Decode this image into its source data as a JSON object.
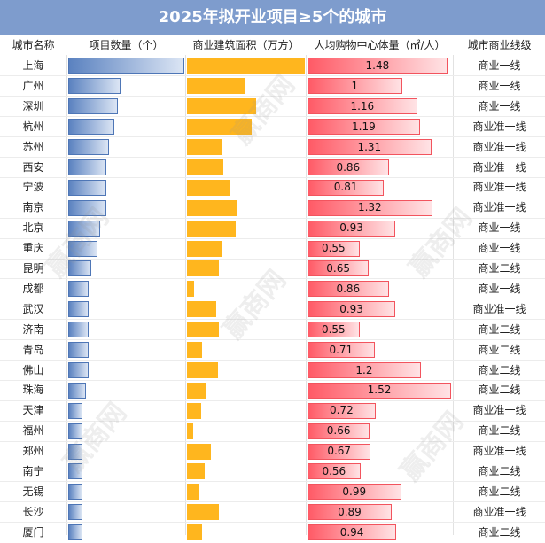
{
  "title": "2025年拟开业项目≥5个的城市",
  "watermark": "赢商网",
  "columns": {
    "city": "城市名称",
    "projects": "项目数量（个）",
    "area": "商业建筑面积（万方）",
    "per_capita": "人均购物中心体量（㎡/人）",
    "tier": "城市商业线级"
  },
  "colors": {
    "header": "#7e9ccd",
    "projects_bar_dark": "#5b82c0",
    "area_bar": "#ffb61e",
    "per_capita_bar": "#ff5a66"
  },
  "chart_data": {
    "type": "table",
    "title": "2025年拟开业项目≥5个的城市",
    "cities": [
      "上海",
      "广州",
      "深圳",
      "杭州",
      "苏州",
      "西安",
      "宁波",
      "南京",
      "北京",
      "重庆",
      "昆明",
      "成都",
      "武汉",
      "济南",
      "青岛",
      "佛山",
      "珠海",
      "天津",
      "福州",
      "郑州",
      "南宁",
      "无锡",
      "长沙",
      "厦门"
    ],
    "projects": [
      20,
      9,
      8.5,
      8,
      7,
      6.5,
      6.5,
      6.5,
      5.5,
      5,
      4,
      3.5,
      3.5,
      3.5,
      3.5,
      3.5,
      3,
      2.5,
      2.5,
      2.5,
      2.5,
      2.5,
      2.5,
      2.5
    ],
    "area": [
      100,
      49,
      59,
      55,
      29,
      31,
      37,
      42,
      41,
      30,
      27,
      6,
      25,
      27,
      13,
      26,
      16,
      12,
      5,
      20,
      15,
      10,
      27,
      13
    ],
    "per_capita": [
      1.48,
      1,
      1.16,
      1.19,
      1.31,
      0.86,
      0.81,
      1.32,
      0.93,
      0.55,
      0.65,
      0.86,
      0.93,
      0.55,
      0.71,
      1.2,
      1.52,
      0.72,
      0.66,
      0.67,
      0.56,
      0.99,
      0.89,
      0.94
    ],
    "per_capita_labels": [
      "1.48",
      "1",
      "1.16",
      "1.19",
      "1.31",
      "0.86",
      "0.81",
      "1.32",
      "0.93",
      "0.55",
      "0.65",
      "0.86",
      "0.93",
      "0.55",
      "0.71",
      "1.2",
      "1.52",
      "0.72",
      "0.66",
      "0.67",
      "0.56",
      "0.99",
      "0.89",
      "0.94"
    ],
    "tiers": [
      "商业一线",
      "商业一线",
      "商业一线",
      "商业准一线",
      "商业准一线",
      "商业准一线",
      "商业准一线",
      "商业准一线",
      "商业一线",
      "商业一线",
      "商业二线",
      "商业一线",
      "商业准一线",
      "商业二线",
      "商业二线",
      "商业二线",
      "商业二线",
      "商业准一线",
      "商业二线",
      "商业准一线",
      "商业二线",
      "商业二线",
      "商业准一线",
      "商业二线"
    ],
    "projects_max": 20,
    "area_max": 100,
    "per_capita_max": 1.52,
    "grid": false
  }
}
